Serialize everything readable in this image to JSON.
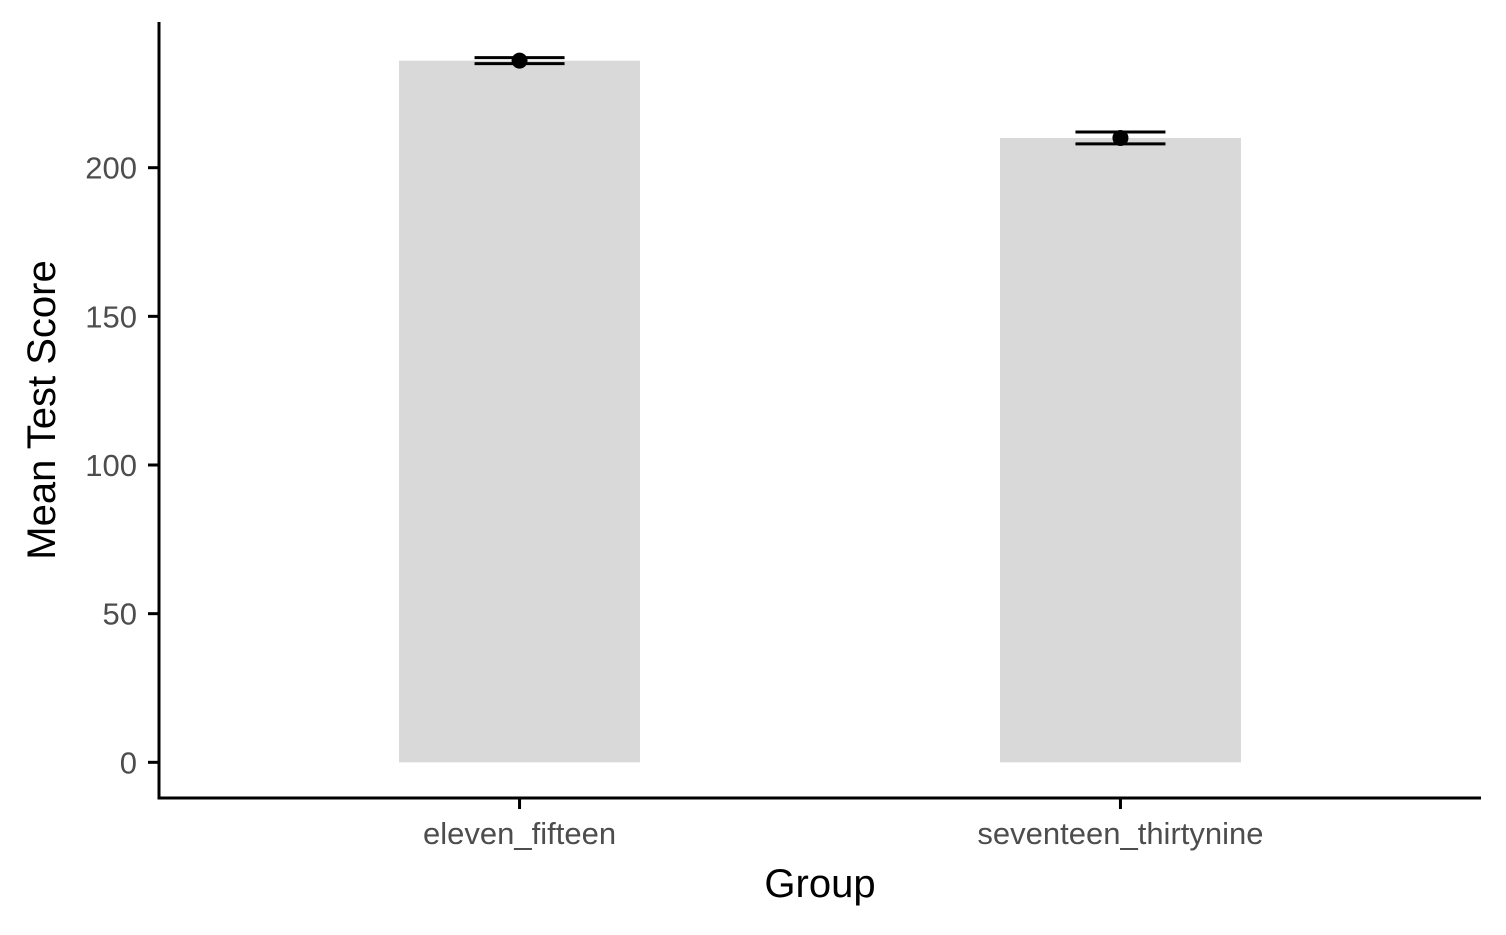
{
  "chart_data": {
    "type": "bar",
    "title": "",
    "xlabel": "Group",
    "ylabel": "Mean Test Score",
    "categories": [
      "eleven_fifteen",
      "seventeen_thirtynine"
    ],
    "values": [
      236,
      210
    ],
    "error_bars": [
      {
        "lower": 235,
        "upper": 237
      },
      {
        "lower": 208,
        "upper": 212
      }
    ],
    "ylim": [
      -12,
      249
    ],
    "yticks": [
      0,
      50,
      100,
      150,
      200
    ],
    "grid": false,
    "legend": "none",
    "colors": {
      "bar": "#d9d9d9",
      "axis": "#000000",
      "error_bar": "#000000",
      "point": "#000000",
      "tick_label": "#4d4d4d"
    }
  }
}
